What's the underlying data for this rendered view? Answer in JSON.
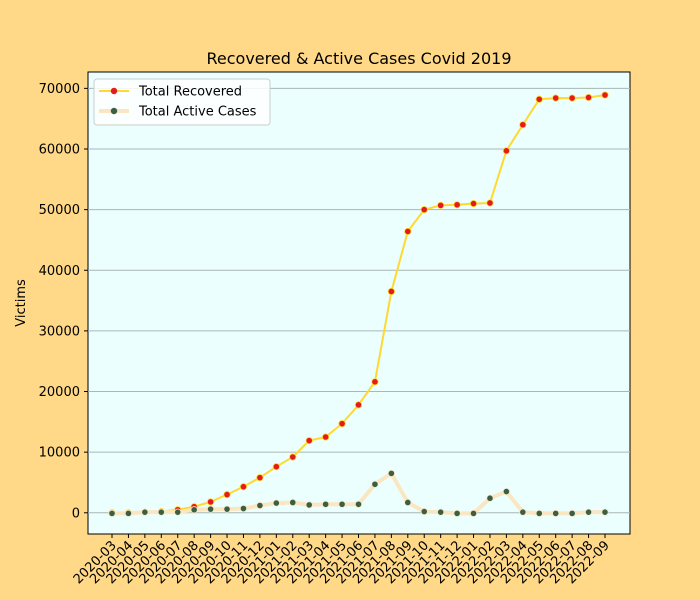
{
  "chart_data": {
    "type": "line",
    "title": "Recovered & Active Cases Covid 2019",
    "xlabel": "",
    "ylabel": "Victims",
    "ylim": [
      -3500,
      72700
    ],
    "yticks": [
      0,
      10000,
      20000,
      30000,
      40000,
      50000,
      60000,
      70000
    ],
    "grid": "horizontal",
    "legend_position": "top-left",
    "categories": [
      "2020-03",
      "2020-04",
      "2020-05",
      "2020-06",
      "2020-07",
      "2020-08",
      "2020-09",
      "2020-10",
      "2020-11",
      "2020-12",
      "2021-01",
      "2021-02",
      "2021-03",
      "2021-04",
      "2021-05",
      "2021-06",
      "2021-07",
      "2021-08",
      "2021-09",
      "2021-10",
      "2021-11",
      "2021-12",
      "2022-01",
      "2022-02",
      "2022-03",
      "2022-04",
      "2022-05",
      "2022-06",
      "2022-07",
      "2022-08",
      "2022-09"
    ],
    "series": [
      {
        "name": "Total Recovered",
        "line_color": "#FFD92F",
        "marker_color": "#E41A1C",
        "values": [
          0,
          0,
          100,
          200,
          500,
          1000,
          1800,
          3000,
          4300,
          5800,
          7600,
          9200,
          11900,
          12500,
          14700,
          17800,
          21600,
          36500,
          46400,
          50000,
          50700,
          50800,
          51000,
          51100,
          59700,
          64000,
          68200,
          68400,
          68400,
          68500,
          68900
        ]
      },
      {
        "name": "Total Active Cases",
        "line_color": "#FBE6C2",
        "marker_color": "#3B5E44",
        "values": [
          -100,
          -100,
          100,
          100,
          100,
          500,
          600,
          600,
          700,
          1200,
          1600,
          1700,
          1300,
          1400,
          1400,
          1400,
          4700,
          6500,
          1700,
          200,
          100,
          -100,
          -100,
          2400,
          3500,
          100,
          -100,
          -100,
          -100,
          100,
          100
        ]
      }
    ]
  },
  "colors": {
    "figure_background": "#FFD987",
    "plot_background": "#EAFFFE",
    "grid": "#A9B7B6"
  }
}
